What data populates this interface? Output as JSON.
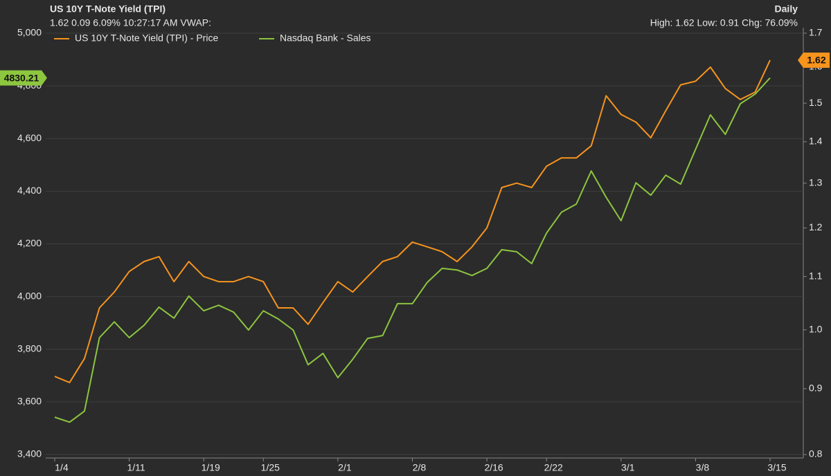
{
  "chart_data": {
    "type": "line",
    "title": "US 10Y T-Note Yield (TPI)",
    "subtitle": "1.62 0.09 6.09% 10:27:17 AM VWAP:",
    "interval": "Daily",
    "stats": "High: 1.62 Low: 0.91 Chg: 76.09%",
    "categories": [
      "1/4",
      null,
      null,
      null,
      null,
      "1/11",
      null,
      null,
      null,
      null,
      "1/19",
      null,
      null,
      null,
      "1/25",
      null,
      null,
      null,
      null,
      "2/1",
      null,
      null,
      null,
      null,
      "2/8",
      null,
      null,
      null,
      null,
      "2/16",
      null,
      null,
      null,
      "2/22",
      null,
      null,
      null,
      null,
      "3/1",
      null,
      null,
      null,
      null,
      "3/8",
      null,
      null,
      null,
      null,
      "3/15"
    ],
    "series": [
      {
        "name": "US 10Y T-Note Yield (TPI) - Price",
        "color": "#f7941d",
        "axis": "y2",
        "values": [
          0.92,
          0.91,
          0.95,
          1.04,
          1.07,
          1.11,
          1.13,
          1.14,
          1.09,
          1.13,
          1.1,
          1.09,
          1.09,
          1.1,
          1.09,
          1.04,
          1.04,
          1.01,
          1.05,
          1.09,
          1.07,
          1.1,
          1.13,
          1.14,
          1.17,
          1.16,
          1.15,
          1.13,
          1.16,
          1.2,
          1.29,
          1.3,
          1.29,
          1.34,
          1.36,
          1.36,
          1.39,
          1.52,
          1.47,
          1.45,
          1.41,
          1.48,
          1.55,
          1.56,
          1.6,
          1.54,
          1.51,
          1.53,
          1.62
        ]
      },
      {
        "name": "Nasdaq Bank - Sales",
        "color": "#8dc63f",
        "values": [
          3542,
          3523,
          3565,
          3844,
          3904,
          3844,
          3891,
          3960,
          3918,
          4002,
          3946,
          3967,
          3941,
          3873,
          3946,
          3915,
          3873,
          3741,
          3784,
          3692,
          3762,
          3841,
          3852,
          3973,
          3973,
          4054,
          4107,
          4101,
          4080,
          4107,
          4178,
          4170,
          4125,
          4241,
          4320,
          4351,
          4477,
          4377,
          4288,
          4432,
          4385,
          4461,
          4427,
          4559,
          4690,
          4616,
          4732,
          4769,
          4830.21
        ]
      }
    ],
    "ylim": [
      3400,
      5000
    ],
    "yticks": [
      {
        "value": 3400,
        "label": "3,400"
      },
      {
        "value": 3600,
        "label": "3,600"
      },
      {
        "value": 3800,
        "label": "3,800"
      },
      {
        "value": 4000,
        "label": "4,000"
      },
      {
        "value": 4200,
        "label": "4,200"
      },
      {
        "value": 4400,
        "label": "4,400"
      },
      {
        "value": 4600,
        "label": "4,600"
      },
      {
        "value": 4800,
        "label": "4,800"
      },
      {
        "value": 5000,
        "label": "5,000"
      }
    ],
    "y2lim": [
      0.8,
      1.7
    ],
    "y2log": true,
    "y2ticks": [
      0.8,
      0.9,
      {
        "value": 1,
        "label": "1.0"
      },
      1.1,
      1.2,
      1.3,
      1.4,
      1.5,
      1.6,
      1.7
    ],
    "grid": true
  }
}
